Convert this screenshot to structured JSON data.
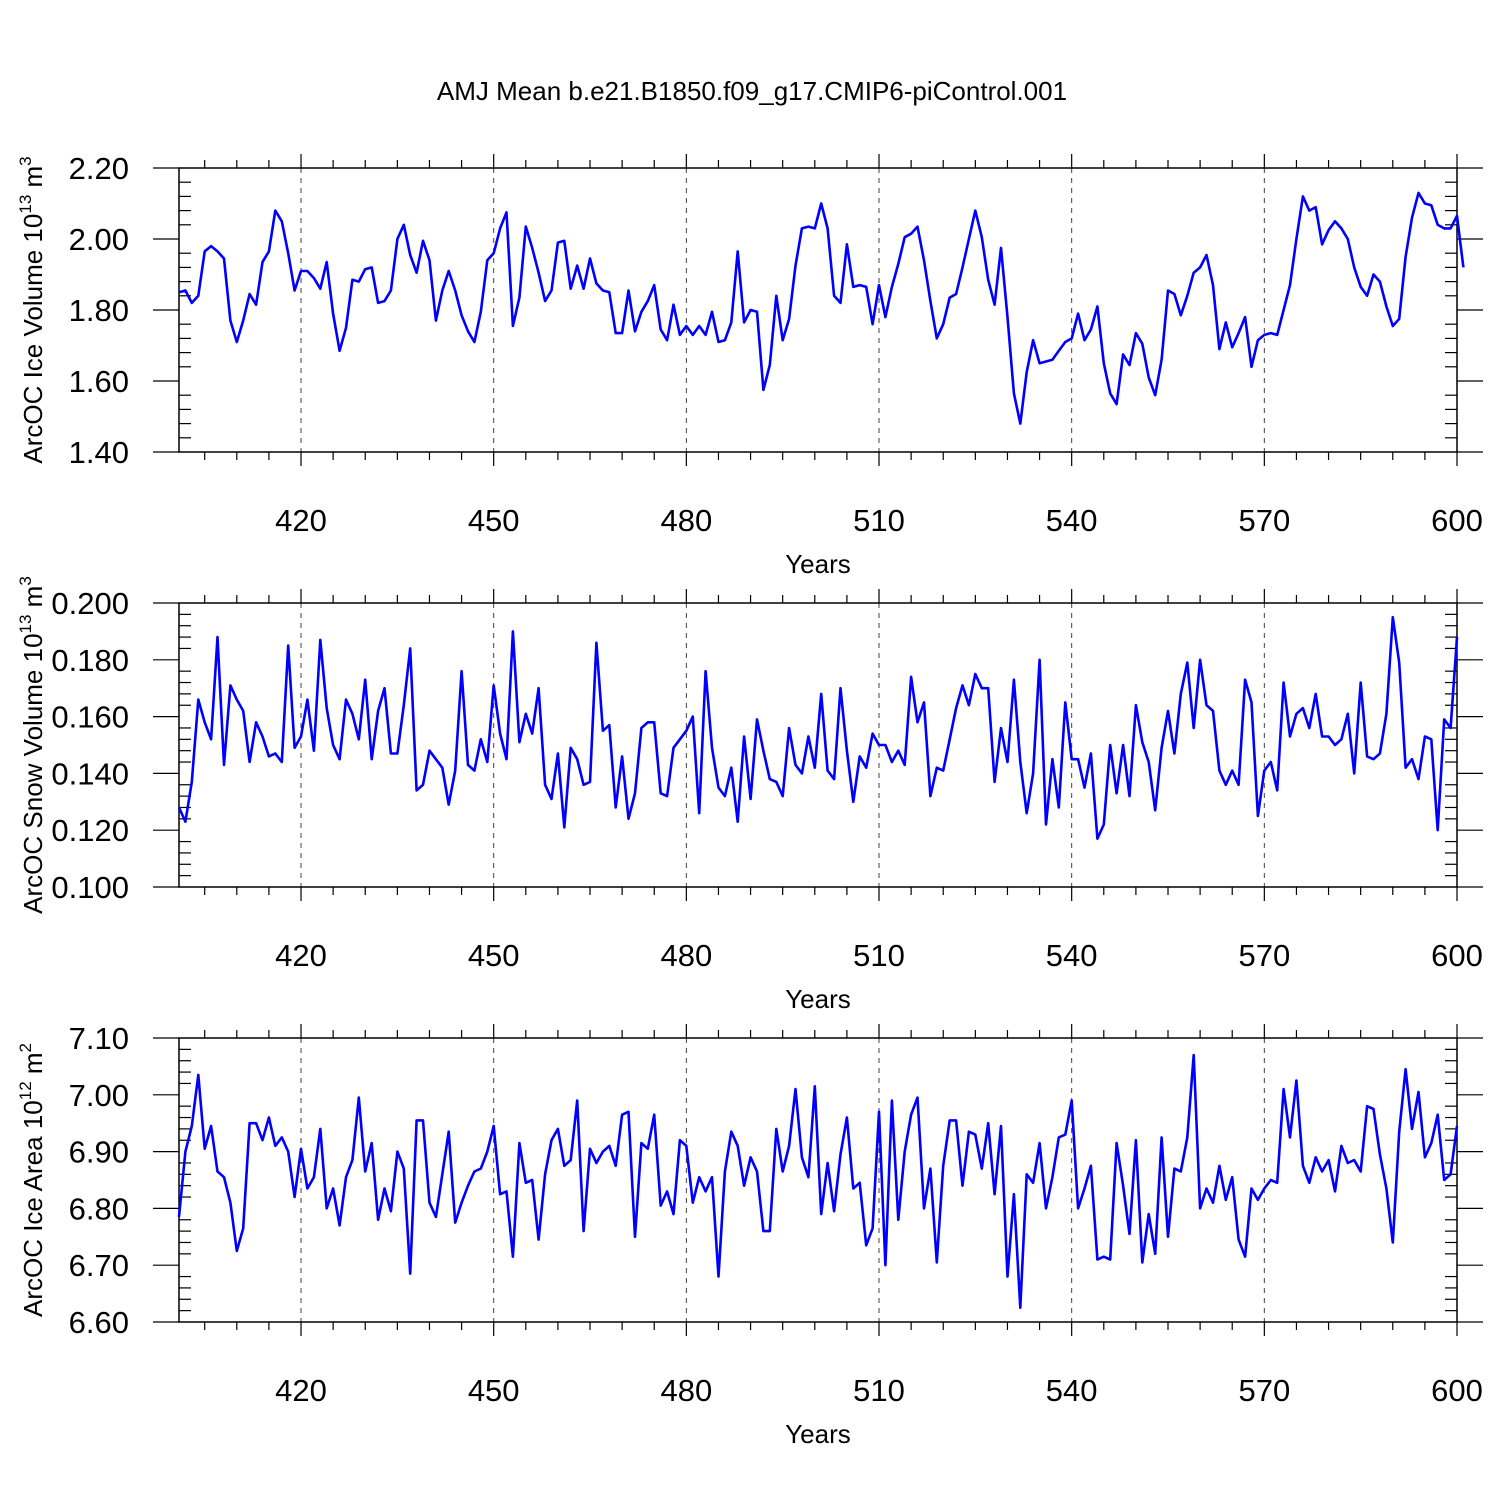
{
  "title": "AMJ Mean b.e21.B1850.f09_g17.CMIP6-piControl.001",
  "colors": {
    "series": "#0000ff",
    "axis": "#000000",
    "grid": "#444444"
  },
  "chart_data": [
    {
      "type": "line",
      "name": "ice-volume",
      "ylabel": "ArcOC Ice Volume 10",
      "ylabel_sup": "13",
      "ylabel_unit": " m",
      "ylabel_unit_sup": "3",
      "xlabel": "Years",
      "xlim": [
        401,
        600
      ],
      "ylim": [
        1.4,
        2.2
      ],
      "xticks": [
        420,
        450,
        480,
        510,
        540,
        570,
        600
      ],
      "yticks": [
        "1.40",
        "1.60",
        "1.80",
        "2.00",
        "2.20"
      ],
      "x_start": 401,
      "values": [
        1.85,
        1.855,
        1.82,
        1.84,
        1.965,
        1.98,
        1.965,
        1.945,
        1.77,
        1.71,
        1.77,
        1.845,
        1.815,
        1.935,
        1.965,
        2.08,
        2.05,
        1.96,
        1.855,
        1.91,
        1.91,
        1.89,
        1.86,
        1.935,
        1.79,
        1.685,
        1.75,
        1.885,
        1.88,
        1.915,
        1.92,
        1.82,
        1.825,
        1.855,
        2.0,
        2.04,
        1.955,
        1.905,
        1.995,
        1.94,
        1.77,
        1.855,
        1.91,
        1.855,
        1.785,
        1.74,
        1.71,
        1.795,
        1.94,
        1.96,
        2.03,
        2.075,
        1.755,
        1.835,
        2.035,
        1.975,
        1.905,
        1.825,
        1.855,
        1.99,
        1.995,
        1.86,
        1.925,
        1.86,
        1.945,
        1.875,
        1.855,
        1.85,
        1.735,
        1.735,
        1.855,
        1.74,
        1.795,
        1.825,
        1.87,
        1.745,
        1.715,
        1.815,
        1.73,
        1.755,
        1.73,
        1.755,
        1.73,
        1.795,
        1.71,
        1.715,
        1.765,
        1.965,
        1.765,
        1.8,
        1.795,
        1.575,
        1.645,
        1.84,
        1.715,
        1.775,
        1.925,
        2.03,
        2.035,
        2.03,
        2.1,
        2.03,
        1.84,
        1.82,
        1.985,
        1.865,
        1.87,
        1.865,
        1.76,
        1.87,
        1.78,
        1.865,
        1.93,
        2.005,
        2.015,
        2.035,
        1.94,
        1.825,
        1.72,
        1.76,
        1.835,
        1.845,
        1.92,
        2.0,
        2.08,
        2.005,
        1.885,
        1.815,
        1.975,
        1.78,
        1.565,
        1.48,
        1.625,
        1.715,
        1.65,
        1.655,
        1.66,
        1.685,
        1.71,
        1.72,
        1.79,
        1.715,
        1.745,
        1.81,
        1.65,
        1.565,
        1.535,
        1.675,
        1.645,
        1.735,
        1.705,
        1.61,
        1.56,
        1.66,
        1.855,
        1.845,
        1.785,
        1.84,
        1.905,
        1.92,
        1.955,
        1.87,
        1.69,
        1.765,
        1.695,
        1.735,
        1.78,
        1.64,
        1.715,
        1.73,
        1.735,
        1.73,
        1.8,
        1.87,
        2.0,
        2.12,
        2.08,
        2.09,
        1.985,
        2.025,
        2.05,
        2.03,
        2.0,
        1.92,
        1.865,
        1.84,
        1.9,
        1.88,
        1.81,
        1.755,
        1.775,
        1.95,
        2.06,
        2.13,
        2.1,
        2.095,
        2.04,
        2.03,
        2.03,
        2.065,
        1.92
      ]
    },
    {
      "type": "line",
      "name": "snow-volume",
      "ylabel": "ArcOC Snow Volume 10",
      "ylabel_sup": "13",
      "ylabel_unit": " m",
      "ylabel_unit_sup": "3",
      "xlabel": "Years",
      "xlim": [
        401,
        600
      ],
      "ylim": [
        0.1,
        0.2
      ],
      "xticks": [
        420,
        450,
        480,
        510,
        540,
        570,
        600
      ],
      "yticks": [
        "0.100",
        "0.120",
        "0.140",
        "0.160",
        "0.180",
        "0.200"
      ],
      "x_start": 401,
      "values": [
        0.128,
        0.123,
        0.137,
        0.166,
        0.158,
        0.152,
        0.188,
        0.143,
        0.171,
        0.166,
        0.162,
        0.144,
        0.158,
        0.153,
        0.146,
        0.147,
        0.144,
        0.185,
        0.149,
        0.153,
        0.166,
        0.148,
        0.187,
        0.163,
        0.15,
        0.145,
        0.166,
        0.161,
        0.152,
        0.173,
        0.145,
        0.162,
        0.17,
        0.147,
        0.147,
        0.164,
        0.184,
        0.134,
        0.136,
        0.148,
        0.145,
        0.142,
        0.129,
        0.141,
        0.176,
        0.143,
        0.141,
        0.152,
        0.144,
        0.171,
        0.154,
        0.145,
        0.19,
        0.151,
        0.161,
        0.154,
        0.17,
        0.136,
        0.131,
        0.147,
        0.121,
        0.149,
        0.145,
        0.136,
        0.137,
        0.186,
        0.155,
        0.157,
        0.128,
        0.146,
        0.124,
        0.133,
        0.156,
        0.158,
        0.158,
        0.133,
        0.132,
        0.149,
        0.152,
        0.155,
        0.16,
        0.126,
        0.176,
        0.149,
        0.135,
        0.132,
        0.142,
        0.123,
        0.153,
        0.131,
        0.159,
        0.148,
        0.138,
        0.137,
        0.132,
        0.156,
        0.143,
        0.14,
        0.153,
        0.142,
        0.168,
        0.141,
        0.138,
        0.17,
        0.148,
        0.13,
        0.146,
        0.142,
        0.154,
        0.15,
        0.15,
        0.144,
        0.148,
        0.143,
        0.174,
        0.158,
        0.165,
        0.132,
        0.142,
        0.141,
        0.152,
        0.163,
        0.171,
        0.164,
        0.175,
        0.17,
        0.17,
        0.137,
        0.156,
        0.144,
        0.173,
        0.144,
        0.126,
        0.14,
        0.18,
        0.122,
        0.145,
        0.128,
        0.165,
        0.145,
        0.145,
        0.135,
        0.147,
        0.117,
        0.122,
        0.15,
        0.133,
        0.15,
        0.132,
        0.164,
        0.151,
        0.144,
        0.127,
        0.149,
        0.162,
        0.147,
        0.168,
        0.179,
        0.156,
        0.18,
        0.164,
        0.162,
        0.141,
        0.136,
        0.141,
        0.136,
        0.173,
        0.165,
        0.125,
        0.141,
        0.144,
        0.134,
        0.172,
        0.153,
        0.161,
        0.163,
        0.156,
        0.168,
        0.153,
        0.153,
        0.15,
        0.152,
        0.161,
        0.14,
        0.172,
        0.146,
        0.145,
        0.147,
        0.161,
        0.195,
        0.179,
        0.142,
        0.145,
        0.138,
        0.153,
        0.152,
        0.12,
        0.159,
        0.156,
        0.188
      ]
    },
    {
      "type": "line",
      "name": "ice-area",
      "ylabel": "ArcOC Ice Area 10",
      "ylabel_sup": "12",
      "ylabel_unit": " m",
      "ylabel_unit_sup": "2",
      "xlabel": "Years",
      "xlim": [
        401,
        600
      ],
      "ylim": [
        6.6,
        7.1
      ],
      "xticks": [
        420,
        450,
        480,
        510,
        540,
        570,
        600
      ],
      "yticks": [
        "6.60",
        "6.70",
        "6.80",
        "6.90",
        "7.00",
        "7.10"
      ],
      "x_start": 401,
      "values": [
        6.785,
        6.9,
        6.945,
        7.035,
        6.905,
        6.945,
        6.865,
        6.855,
        6.81,
        6.725,
        6.765,
        6.95,
        6.95,
        6.92,
        6.96,
        6.91,
        6.925,
        6.9,
        6.82,
        6.905,
        6.835,
        6.855,
        6.94,
        6.8,
        6.835,
        6.77,
        6.855,
        6.885,
        6.995,
        6.865,
        6.915,
        6.78,
        6.835,
        6.795,
        6.9,
        6.87,
        6.685,
        6.955,
        6.955,
        6.81,
        6.785,
        6.86,
        6.935,
        6.775,
        6.81,
        6.84,
        6.865,
        6.87,
        6.9,
        6.945,
        6.825,
        6.83,
        6.715,
        6.915,
        6.845,
        6.85,
        6.745,
        6.86,
        6.92,
        6.94,
        6.875,
        6.885,
        6.99,
        6.76,
        6.905,
        6.88,
        6.9,
        6.91,
        6.875,
        6.965,
        6.97,
        6.75,
        6.915,
        6.905,
        6.965,
        6.805,
        6.83,
        6.79,
        6.92,
        6.91,
        6.81,
        6.855,
        6.83,
        6.855,
        6.68,
        6.865,
        6.935,
        6.91,
        6.84,
        6.89,
        6.865,
        6.76,
        6.76,
        6.94,
        6.865,
        6.91,
        7.01,
        6.89,
        6.855,
        7.015,
        6.79,
        6.88,
        6.795,
        6.895,
        6.96,
        6.835,
        6.845,
        6.735,
        6.765,
        6.97,
        6.7,
        6.99,
        6.78,
        6.9,
        6.965,
        6.995,
        6.8,
        6.87,
        6.705,
        6.875,
        6.955,
        6.955,
        6.84,
        6.935,
        6.93,
        6.87,
        6.95,
        6.825,
        6.945,
        6.68,
        6.825,
        6.625,
        6.86,
        6.845,
        6.915,
        6.8,
        6.855,
        6.925,
        6.93,
        6.99,
        6.8,
        6.835,
        6.875,
        6.71,
        6.715,
        6.71,
        6.915,
        6.84,
        6.755,
        6.92,
        6.705,
        6.79,
        6.72,
        6.925,
        6.75,
        6.87,
        6.865,
        6.925,
        7.07,
        6.8,
        6.835,
        6.81,
        6.875,
        6.815,
        6.855,
        6.745,
        6.715,
        6.835,
        6.815,
        6.835,
        6.85,
        6.845,
        7.01,
        6.925,
        7.025,
        6.875,
        6.845,
        6.89,
        6.865,
        6.885,
        6.83,
        6.91,
        6.88,
        6.885,
        6.865,
        6.98,
        6.975,
        6.895,
        6.835,
        6.74,
        6.935,
        7.045,
        6.94,
        7.005,
        6.89,
        6.915,
        6.965,
        6.85,
        6.86,
        6.945
      ]
    }
  ]
}
